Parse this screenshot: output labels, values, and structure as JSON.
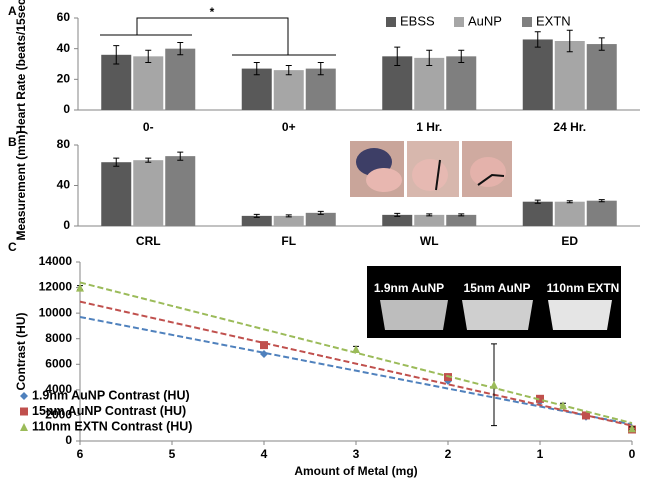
{
  "chart_data": [
    {
      "type": "bar",
      "panel_label": "A",
      "y_label": "Heart Rate (beats/15sec)",
      "categories": [
        "0-",
        "0+",
        "1 Hr.",
        "24 Hr."
      ],
      "series": [
        {
          "name": "EBSS",
          "color": "#595959",
          "values": [
            36,
            27,
            35,
            46
          ],
          "errors": [
            6,
            4,
            6,
            5
          ]
        },
        {
          "name": "AuNP",
          "color": "#a6a6a6",
          "values": [
            35,
            26,
            34,
            45
          ],
          "errors": [
            4,
            3,
            5,
            7
          ]
        },
        {
          "name": "EXTN",
          "color": "#7f7f7f",
          "values": [
            40,
            27,
            35,
            43
          ],
          "errors": [
            4,
            4,
            4,
            4
          ]
        }
      ],
      "ylim": [
        0,
        60
      ],
      "yticks": [
        0,
        20,
        40,
        60
      ],
      "legend": "top-right",
      "annotation": "*"
    },
    {
      "type": "bar",
      "panel_label": "B",
      "y_label": "Measurement (mm)",
      "categories": [
        "CRL",
        "FL",
        "WL",
        "ED"
      ],
      "series": [
        {
          "color": "#595959",
          "values": [
            63,
            10,
            11,
            24
          ],
          "errors": [
            4,
            1.5,
            1.5,
            1.5
          ]
        },
        {
          "color": "#a6a6a6",
          "values": [
            65,
            10,
            11,
            24
          ],
          "errors": [
            2,
            1,
            1,
            1
          ]
        },
        {
          "color": "#7f7f7f",
          "values": [
            69,
            13,
            11,
            25
          ],
          "errors": [
            4,
            1.5,
            1,
            1
          ]
        }
      ],
      "ylim": [
        0,
        80
      ],
      "yticks": [
        0,
        40,
        80
      ]
    },
    {
      "type": "scatter",
      "panel_label": "C",
      "x_label": "Amount of Metal (mg)",
      "y_label": "Contrast (HU)",
      "inset_labels": [
        "1.9nm AuNP",
        "15nm AuNP",
        "110nm EXTN"
      ],
      "series": [
        {
          "name": "1.9nm AuNP Contrast (HU)",
          "color": "#4f81bd",
          "marker": "diamond",
          "x": [
            4,
            2,
            1,
            0.5,
            0
          ],
          "values": [
            6800,
            4700,
            3100,
            1900,
            1000
          ],
          "trend_x": [
            6,
            0
          ],
          "trend_y": [
            9700,
            1300
          ]
        },
        {
          "name": "15nm AuNP Contrast (HU)",
          "color": "#c0504d",
          "marker": "square",
          "x": [
            4,
            2,
            1,
            0.5,
            0
          ],
          "values": [
            7500,
            5000,
            3300,
            2000,
            900
          ],
          "trend_x": [
            6,
            0
          ],
          "trend_y": [
            10900,
            1200
          ]
        },
        {
          "name": "110nm EXTN Contrast (HU)",
          "color": "#9bbb59",
          "marker": "triangle",
          "x": [
            6,
            3,
            1.5,
            0.75,
            0
          ],
          "values": [
            12000,
            7200,
            4400,
            2800,
            1000
          ],
          "errors": [
            150,
            200,
            3200,
            150,
            100
          ],
          "trend_x": [
            6,
            0
          ],
          "trend_y": [
            12400,
            1400
          ]
        }
      ],
      "xlim": [
        6,
        0
      ],
      "xticks": [
        6,
        5,
        4,
        3,
        2,
        1,
        0
      ],
      "ylim": [
        0,
        14000
      ],
      "yticks": [
        0,
        2000,
        4000,
        6000,
        8000,
        10000,
        12000,
        14000
      ],
      "legend": "bottom-left"
    }
  ]
}
